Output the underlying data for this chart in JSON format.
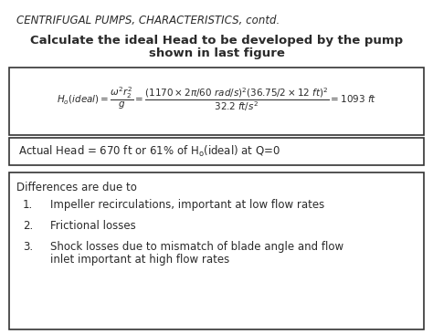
{
  "title": "CENTRIFUGAL PUMPS, CHARACTERISTICS, contd.",
  "subtitle_line1": "Calculate the ideal Head to be developed by the pump",
  "subtitle_line2": "shown in last figure",
  "actual_head_text": "Actual Head = 670 ft or 61% of H",
  "actual_head_sub": "o",
  "actual_head_end": "(ideal) at Q=0",
  "differences_title": "Differences are due to",
  "item1": "Impeller recirculations, important at low flow rates",
  "item2": "Frictional losses",
  "item3a": "Shock losses due to mismatch of blade angle and flow",
  "item3b": "inlet important at high flow rates",
  "bg_color": "#ffffff",
  "text_color": "#2a2a2a",
  "box_edge": "#333333"
}
